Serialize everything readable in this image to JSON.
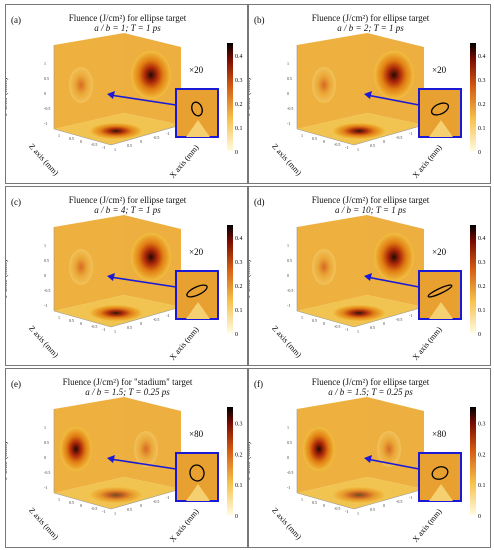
{
  "panels": [
    {
      "label": "(a)",
      "title": "Fluence (J/cm²) for ellipse target",
      "subtitle": "a / b = 1; T = 1 ps",
      "zoom": "×20",
      "cbar": [
        "0.4",
        "0.3",
        "0.2",
        "0.1",
        "0"
      ],
      "cmax": 0.45,
      "ellipse": {
        "rx": 5,
        "ry": 7,
        "rot": -20
      }
    },
    {
      "label": "(b)",
      "title": "Fluence (J/cm²) for ellipse target",
      "subtitle": "a / b = 2; T = 1 ps",
      "zoom": "×20",
      "cbar": [
        "0.4",
        "0.3",
        "0.2",
        "0.1",
        "0"
      ],
      "cmax": 0.45,
      "ellipse": {
        "rx": 9,
        "ry": 5,
        "rot": -25
      }
    },
    {
      "label": "(c)",
      "title": "Fluence (J/cm²) for ellipse target",
      "subtitle": "a / b = 4; T = 1 ps",
      "zoom": "×20",
      "cbar": [
        "0.4",
        "0.3",
        "0.2",
        "0.1",
        "0"
      ],
      "cmax": 0.45,
      "ellipse": {
        "rx": 11,
        "ry": 4,
        "rot": -25
      }
    },
    {
      "label": "(d)",
      "title": "Fluence (J/cm²) for ellipse target",
      "subtitle": "a / b = 10; T = 1 ps",
      "zoom": "×20",
      "cbar": [
        "0.4",
        "0.3",
        "0.2",
        "0.1",
        "0"
      ],
      "cmax": 0.45,
      "ellipse": {
        "rx": 13,
        "ry": 2.5,
        "rot": -25
      }
    },
    {
      "label": "(e)",
      "title": "Fluence (J/cm²) for \"stadium\" target",
      "subtitle": "a / b = 1.5; T = 0.25 ps",
      "zoom": "×80",
      "cbar": [
        "0.3",
        "0.2",
        "0.1",
        "0"
      ],
      "cmax": 0.35,
      "ellipse": {
        "rx": 7,
        "ry": 8,
        "rot": -10
      }
    },
    {
      "label": "(f)",
      "title": "Fluence (J/cm²) for ellipse target",
      "subtitle": "a / b = 1.5; T = 0.25 ps",
      "zoom": "×80",
      "cbar": [
        "0.3",
        "0.2",
        "0.1",
        "0"
      ],
      "cmax": 0.35,
      "ellipse": {
        "rx": 8,
        "ry": 6,
        "rot": -20
      }
    }
  ],
  "axes": {
    "y": "Y axis (mm)",
    "z": "Z axis (mm)",
    "x": "X axis (mm)"
  },
  "chart_data": {
    "type": "heatmap",
    "note": "3D fluence projections with colorbars",
    "colorbar_ranges": [
      [
        0,
        0.45
      ],
      [
        0,
        0.45
      ],
      [
        0,
        0.45
      ],
      [
        0,
        0.45
      ],
      [
        0,
        0.35
      ],
      [
        0,
        0.35
      ]
    ],
    "axis_ticks": [
      "1",
      "0.5",
      "0",
      "-0.5",
      "-1"
    ]
  },
  "colors": {
    "frame": "#1a1ad6",
    "arrow": "#1a1ad6"
  }
}
